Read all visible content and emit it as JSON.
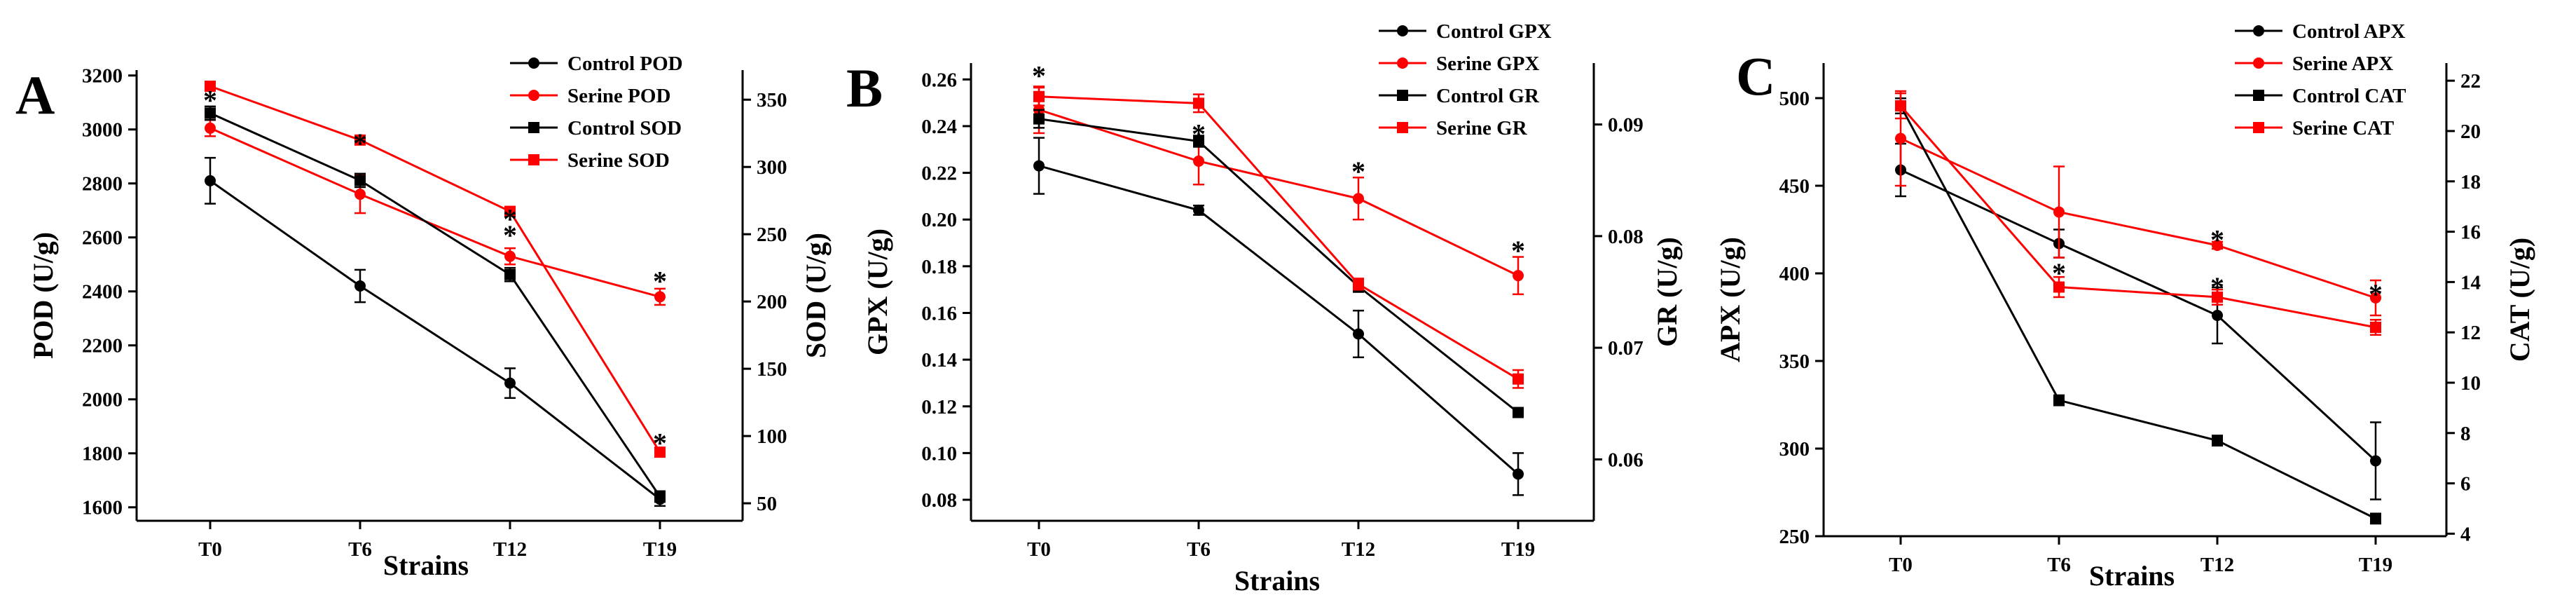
{
  "chart_data": [
    {
      "panel_label": "A",
      "type": "line",
      "categories": [
        "T0",
        "T6",
        "T12",
        "T19"
      ],
      "xlabel": "Strains",
      "ylabel": "POD (U/g)",
      "y2label": "SOD (U/g)",
      "ylim": [
        1550,
        3220
      ],
      "y2lim": [
        37,
        372
      ],
      "yticks": [
        1600,
        1800,
        2000,
        2200,
        2400,
        2600,
        2800,
        3000,
        3200
      ],
      "y2ticks": [
        50,
        100,
        150,
        200,
        250,
        300,
        350
      ],
      "legend_position": "top-right",
      "series": [
        {
          "name": "Control POD",
          "axis": "left",
          "marker": "circle",
          "color": "#000000",
          "values": [
            2810,
            2420,
            2060,
            1630
          ],
          "errors": [
            85,
            60,
            55,
            25
          ]
        },
        {
          "name": "Serine POD",
          "axis": "left",
          "marker": "circle",
          "color": "#ff0000",
          "values": [
            3005,
            2760,
            2530,
            2380
          ],
          "errors": [
            30,
            70,
            30,
            30
          ]
        },
        {
          "name": "Control SOD",
          "axis": "right",
          "marker": "square",
          "color": "#000000",
          "values": [
            340,
            290,
            220,
            55
          ],
          "errors": [
            5,
            5,
            5,
            4
          ]
        },
        {
          "name": "Serine SOD",
          "axis": "right",
          "marker": "square",
          "color": "#ff0000",
          "values": [
            360,
            320,
            267,
            88
          ],
          "errors": [
            3,
            3,
            3,
            3
          ]
        }
      ],
      "annotations": [
        {
          "text": "*",
          "category": "T0",
          "axis": "left",
          "value": 3120
        },
        {
          "text": "*",
          "category": "T6",
          "axis": "left",
          "value": 2960
        },
        {
          "text": "*",
          "category": "T12",
          "axis": "left",
          "value": 2680
        },
        {
          "text": "*",
          "category": "T12",
          "axis": "left",
          "value": 2620
        },
        {
          "text": "*",
          "category": "T19",
          "axis": "left",
          "value": 2450
        },
        {
          "text": "*",
          "category": "T19",
          "axis": "left",
          "value": 1850
        }
      ]
    },
    {
      "panel_label": "B",
      "type": "line",
      "categories": [
        "T0",
        "T6",
        "T12",
        "T19"
      ],
      "xlabel": "Strains",
      "ylabel": "GPX (U/g)",
      "y2label": "GR (U/g)",
      "ylim": [
        0.071,
        0.267
      ],
      "y2lim": [
        0.0545,
        0.0955
      ],
      "yticks": [
        0.08,
        0.1,
        0.12,
        0.14,
        0.16,
        0.18,
        0.2,
        0.22,
        0.24,
        0.26
      ],
      "ytick_labels": [
        "0.08",
        "0.10",
        "0.12",
        "0.14",
        "0.16",
        "0.18",
        "0.20",
        "0.22",
        "0.24",
        "0.26"
      ],
      "y2ticks": [
        0.06,
        0.07,
        0.08,
        0.09
      ],
      "y2tick_labels": [
        "0.06",
        "0.07",
        "0.08",
        "0.09"
      ],
      "legend_position": "top-right",
      "series": [
        {
          "name": "Control GPX",
          "axis": "left",
          "marker": "circle",
          "color": "#000000",
          "values": [
            0.223,
            0.204,
            0.151,
            0.091
          ],
          "errors": [
            0.012,
            0.002,
            0.01,
            0.009
          ]
        },
        {
          "name": "Serine GPX",
          "axis": "left",
          "marker": "circle",
          "color": "#ff0000",
          "values": [
            0.247,
            0.225,
            0.209,
            0.176
          ],
          "errors": [
            0.01,
            0.01,
            0.009,
            0.008
          ]
        },
        {
          "name": "Control GR",
          "axis": "right",
          "marker": "square",
          "color": "#000000",
          "values": [
            0.0905,
            0.0885,
            0.0755,
            0.0642
          ],
          "errors": [
            0.0008,
            0.0005,
            0.0005,
            0.0003
          ]
        },
        {
          "name": "Serine GR",
          "axis": "right",
          "marker": "square",
          "color": "#ff0000",
          "values": [
            0.0925,
            0.0919,
            0.0757,
            0.0672
          ],
          "errors": [
            0.0008,
            0.0008,
            0.0005,
            0.0008
          ]
        }
      ],
      "annotations": [
        {
          "text": "*",
          "category": "T0",
          "axis": "left",
          "value": 0.263
        },
        {
          "text": "*",
          "category": "T6",
          "axis": "left",
          "value": 0.238
        },
        {
          "text": "*",
          "category": "T12",
          "axis": "left",
          "value": 0.222
        },
        {
          "text": "*",
          "category": "T19",
          "axis": "left",
          "value": 0.188
        }
      ]
    },
    {
      "panel_label": "C",
      "type": "line",
      "categories": [
        "T0",
        "T6",
        "T12",
        "T19"
      ],
      "xlabel": "Strains",
      "ylabel": "APX (U/g)",
      "y2label": "CAT (U/g)",
      "ylim": [
        250,
        520
      ],
      "y2lim": [
        3.9,
        22.7
      ],
      "yticks": [
        250,
        300,
        350,
        400,
        450,
        500
      ],
      "y2ticks": [
        4,
        6,
        8,
        10,
        12,
        14,
        16,
        18,
        20,
        22
      ],
      "legend_position": "top-right",
      "series": [
        {
          "name": "Control APX",
          "axis": "left",
          "marker": "circle",
          "color": "#000000",
          "values": [
            459,
            417,
            376,
            293
          ],
          "errors": [
            15,
            8,
            16,
            22
          ]
        },
        {
          "name": "Serine APX",
          "axis": "left",
          "marker": "circle",
          "color": "#ff0000",
          "values": [
            477,
            435,
            416,
            386
          ],
          "errors": [
            27,
            26,
            2,
            10
          ]
        },
        {
          "name": "Control CAT",
          "axis": "right",
          "marker": "square",
          "color": "#000000",
          "values": [
            21.0,
            9.3,
            7.7,
            4.6
          ],
          "errors": [
            0.3,
            0.2,
            0.2,
            0.2
          ]
        },
        {
          "name": "Serine CAT",
          "axis": "right",
          "marker": "square",
          "color": "#ff0000",
          "values": [
            21.0,
            13.8,
            13.4,
            12.2
          ],
          "errors": [
            0.5,
            0.4,
            0.3,
            0.3
          ]
        }
      ],
      "annotations": [
        {
          "text": "*",
          "category": "T6",
          "axis": "left",
          "value": 402
        },
        {
          "text": "*",
          "category": "T12",
          "axis": "left",
          "value": 421
        },
        {
          "text": "*",
          "category": "T12",
          "axis": "left",
          "value": 394
        },
        {
          "text": "*",
          "category": "T19",
          "axis": "left",
          "value": 390
        }
      ]
    }
  ]
}
